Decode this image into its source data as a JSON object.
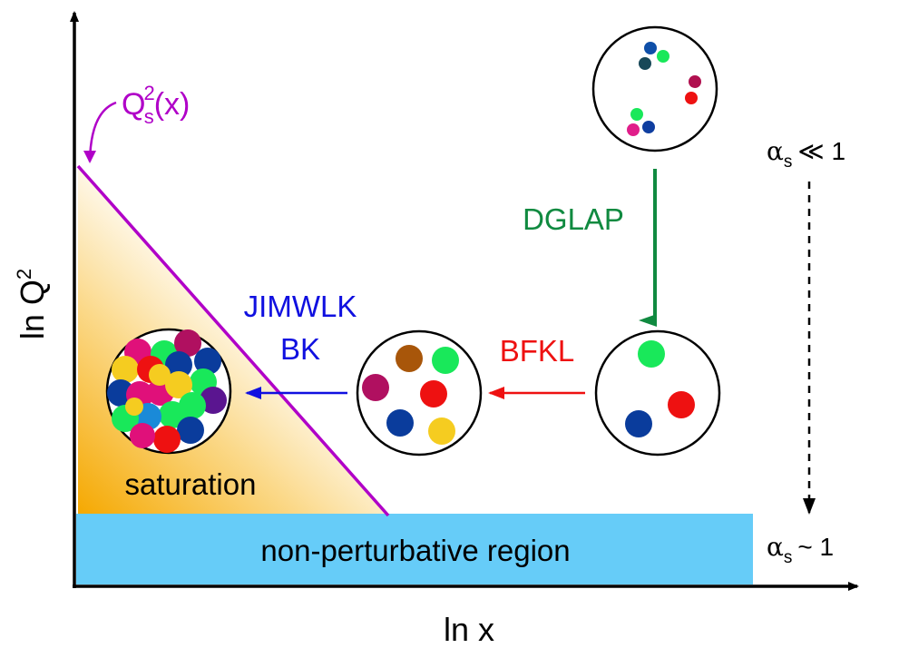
{
  "axes": {
    "x_label": "ln x",
    "y_label": "ln Q",
    "y_label_sup": "2"
  },
  "saturation_line": {
    "label_main": "Q",
    "label_sup": "2",
    "label_sub": "s",
    "label_tail": "(x)"
  },
  "regions": {
    "saturation": "saturation",
    "non_perturbative": "non-perturbative region"
  },
  "evolution": {
    "jimwlk": "JIMWLK",
    "bk": "BK",
    "bfkl": "BFKL",
    "dglap": "DGLAP"
  },
  "coupling": {
    "weak_symbol": "α",
    "weak_sub": "s",
    "weak_rel": "≪ 1",
    "strong_symbol": "α",
    "strong_sub": "s",
    "strong_rel": "~ 1"
  },
  "colors": {
    "axis": "#000000",
    "saturation_line": "#b000c8",
    "q2s_label": "#b000c8",
    "jimwlk_bk": "#1010e0",
    "bfkl": "#ee1111",
    "dglap": "#108a40",
    "nonpert_fill": "#66ccf8",
    "sat_gradient_dark": "#f5a800",
    "sat_gradient_light": "#ffffff"
  }
}
